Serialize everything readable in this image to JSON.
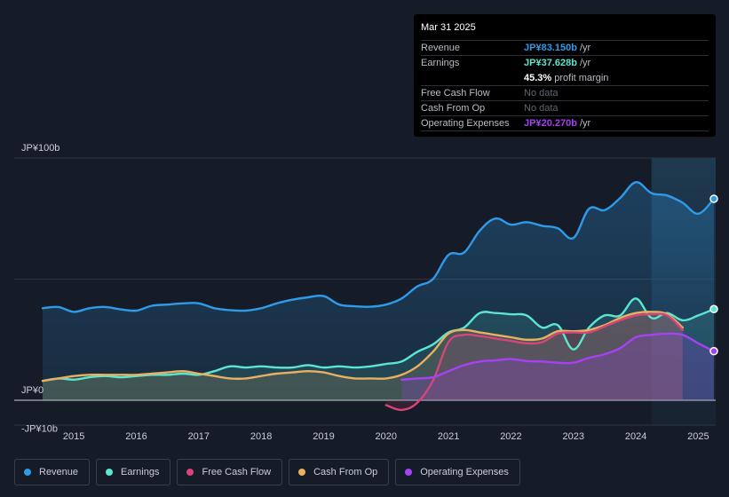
{
  "tooltip": {
    "date": "Mar 31 2025",
    "rows": [
      {
        "label": "Revenue",
        "value": "JP¥83.150b",
        "unit": " /yr",
        "color": "#2e9bea"
      },
      {
        "label": "Earnings",
        "value": "JP¥37.628b",
        "unit": " /yr",
        "color": "#5ce6cf"
      },
      {
        "label": "",
        "value": "45.3%",
        "unit": " profit margin",
        "color": "#ffffff"
      },
      {
        "label": "Free Cash Flow",
        "value": "No data",
        "unit": "",
        "color": "#5f6672"
      },
      {
        "label": "Cash From Op",
        "value": "No data",
        "unit": "",
        "color": "#5f6672"
      },
      {
        "label": "Operating Expenses",
        "value": "JP¥20.270b",
        "unit": " /yr",
        "color": "#a542f4"
      }
    ]
  },
  "legend": [
    {
      "label": "Revenue",
      "color": "#2e9bea"
    },
    {
      "label": "Earnings",
      "color": "#5ce6cf"
    },
    {
      "label": "Free Cash Flow",
      "color": "#d6457a"
    },
    {
      "label": "Cash From Op",
      "color": "#e8b060"
    },
    {
      "label": "Operating Expenses",
      "color": "#a542f4"
    }
  ],
  "chart_data": {
    "type": "area",
    "title": "",
    "xlabel": "",
    "ylabel": "",
    "y_axis_labels": [
      "JP¥100b",
      "JP¥0",
      "-JP¥10b"
    ],
    "x_tick_labels": [
      "2015",
      "2016",
      "2017",
      "2018",
      "2019",
      "2020",
      "2021",
      "2022",
      "2023",
      "2024",
      "2025"
    ],
    "x_ticks": [
      2015,
      2016,
      2017,
      2018,
      2019,
      2020,
      2021,
      2022,
      2023,
      2024,
      2025
    ],
    "xlim": [
      2014.5,
      2025.25
    ],
    "ylim": [
      -10,
      100
    ],
    "gridlines": [
      100,
      50,
      0
    ],
    "forecast_start": 2024.25,
    "series": [
      {
        "name": "Revenue",
        "color": "#2e9bea",
        "points": [
          [
            2014.5,
            38
          ],
          [
            2014.75,
            38.5
          ],
          [
            2015.0,
            36.5
          ],
          [
            2015.25,
            38
          ],
          [
            2015.5,
            38.5
          ],
          [
            2015.75,
            37.5
          ],
          [
            2016.0,
            37
          ],
          [
            2016.25,
            39
          ],
          [
            2016.5,
            39.5
          ],
          [
            2016.75,
            40
          ],
          [
            2017.0,
            40
          ],
          [
            2017.25,
            38
          ],
          [
            2017.5,
            37.2
          ],
          [
            2017.75,
            37
          ],
          [
            2018.0,
            38
          ],
          [
            2018.25,
            40
          ],
          [
            2018.5,
            41.5
          ],
          [
            2018.75,
            42.5
          ],
          [
            2019.0,
            43
          ],
          [
            2019.25,
            39.5
          ],
          [
            2019.5,
            38.8
          ],
          [
            2019.75,
            38.6
          ],
          [
            2020.0,
            39.5
          ],
          [
            2020.25,
            42
          ],
          [
            2020.5,
            47
          ],
          [
            2020.75,
            50
          ],
          [
            2021.0,
            60
          ],
          [
            2021.25,
            61
          ],
          [
            2021.5,
            70
          ],
          [
            2021.75,
            75
          ],
          [
            2022.0,
            72.5
          ],
          [
            2022.25,
            73.5
          ],
          [
            2022.5,
            72
          ],
          [
            2022.75,
            71
          ],
          [
            2023.0,
            67
          ],
          [
            2023.25,
            79
          ],
          [
            2023.5,
            78.5
          ],
          [
            2023.75,
            83.5
          ],
          [
            2024.0,
            90
          ],
          [
            2024.25,
            85.5
          ],
          [
            2024.5,
            84.5
          ],
          [
            2024.75,
            81.5
          ],
          [
            2025.0,
            77
          ],
          [
            2025.25,
            83.15
          ]
        ]
      },
      {
        "name": "Earnings",
        "color": "#5ce6cf",
        "points": [
          [
            2014.5,
            8
          ],
          [
            2014.75,
            9
          ],
          [
            2015.0,
            8.5
          ],
          [
            2015.25,
            9.5
          ],
          [
            2015.5,
            10
          ],
          [
            2015.75,
            9.5
          ],
          [
            2016.0,
            10
          ],
          [
            2016.25,
            10.5
          ],
          [
            2016.5,
            10.5
          ],
          [
            2016.75,
            11
          ],
          [
            2017.0,
            10.5
          ],
          [
            2017.25,
            12
          ],
          [
            2017.5,
            14
          ],
          [
            2017.75,
            13.5
          ],
          [
            2018.0,
            14
          ],
          [
            2018.25,
            13.5
          ],
          [
            2018.5,
            13.5
          ],
          [
            2018.75,
            14.5
          ],
          [
            2019.0,
            13.5
          ],
          [
            2019.25,
            14
          ],
          [
            2019.5,
            13.5
          ],
          [
            2019.75,
            14
          ],
          [
            2020.0,
            15
          ],
          [
            2020.25,
            16
          ],
          [
            2020.5,
            20
          ],
          [
            2020.75,
            23
          ],
          [
            2021.0,
            28
          ],
          [
            2021.25,
            30
          ],
          [
            2021.5,
            36
          ],
          [
            2021.75,
            36
          ],
          [
            2022.0,
            35.5
          ],
          [
            2022.25,
            35
          ],
          [
            2022.5,
            30
          ],
          [
            2022.75,
            31
          ],
          [
            2023.0,
            21
          ],
          [
            2023.25,
            30
          ],
          [
            2023.5,
            35
          ],
          [
            2023.75,
            35
          ],
          [
            2024.0,
            42
          ],
          [
            2024.25,
            34
          ],
          [
            2024.5,
            36
          ],
          [
            2024.75,
            33
          ],
          [
            2025.0,
            35
          ],
          [
            2025.25,
            37.63
          ]
        ]
      },
      {
        "name": "Free Cash Flow",
        "color": "#d6457a",
        "points": [
          [
            2020.0,
            -2
          ],
          [
            2020.25,
            -4
          ],
          [
            2020.5,
            -1
          ],
          [
            2020.75,
            8
          ],
          [
            2021.0,
            24
          ],
          [
            2021.25,
            27
          ],
          [
            2021.5,
            26.5
          ],
          [
            2021.75,
            25.5
          ],
          [
            2022.0,
            24.5
          ],
          [
            2022.25,
            23.5
          ],
          [
            2022.5,
            24
          ],
          [
            2022.75,
            27.5
          ],
          [
            2023.0,
            28
          ],
          [
            2023.25,
            28
          ],
          [
            2023.5,
            30.5
          ],
          [
            2023.75,
            33
          ],
          [
            2024.0,
            35
          ],
          [
            2024.25,
            35.5
          ],
          [
            2024.5,
            35
          ],
          [
            2024.75,
            29
          ]
        ]
      },
      {
        "name": "Cash From Op",
        "color": "#e8b060",
        "points": [
          [
            2014.5,
            8
          ],
          [
            2014.75,
            9
          ],
          [
            2015.0,
            10
          ],
          [
            2015.25,
            10.5
          ],
          [
            2015.5,
            10.5
          ],
          [
            2015.75,
            10.5
          ],
          [
            2016.0,
            10.5
          ],
          [
            2016.25,
            11
          ],
          [
            2016.5,
            11.5
          ],
          [
            2016.75,
            12
          ],
          [
            2017.0,
            11
          ],
          [
            2017.25,
            10
          ],
          [
            2017.5,
            9
          ],
          [
            2017.75,
            9
          ],
          [
            2018.0,
            10
          ],
          [
            2018.25,
            11
          ],
          [
            2018.5,
            11.5
          ],
          [
            2018.75,
            12
          ],
          [
            2019.0,
            11.5
          ],
          [
            2019.25,
            10
          ],
          [
            2019.5,
            9
          ],
          [
            2019.75,
            9
          ],
          [
            2020.0,
            9
          ],
          [
            2020.25,
            10.5
          ],
          [
            2020.5,
            14
          ],
          [
            2020.75,
            20
          ],
          [
            2021.0,
            27.5
          ],
          [
            2021.25,
            29
          ],
          [
            2021.5,
            28
          ],
          [
            2021.75,
            27
          ],
          [
            2022.0,
            26
          ],
          [
            2022.25,
            25
          ],
          [
            2022.5,
            25.5
          ],
          [
            2022.75,
            28.5
          ],
          [
            2023.0,
            28.5
          ],
          [
            2023.25,
            29
          ],
          [
            2023.5,
            31
          ],
          [
            2023.75,
            34
          ],
          [
            2024.0,
            36
          ],
          [
            2024.25,
            36.5
          ],
          [
            2024.5,
            35.5
          ],
          [
            2024.75,
            30
          ]
        ]
      },
      {
        "name": "Operating Expenses",
        "color": "#a542f4",
        "points": [
          [
            2020.25,
            8.5
          ],
          [
            2020.5,
            9
          ],
          [
            2020.75,
            9.5
          ],
          [
            2021.0,
            12
          ],
          [
            2021.25,
            14.5
          ],
          [
            2021.5,
            16
          ],
          [
            2021.75,
            16.5
          ],
          [
            2022.0,
            17
          ],
          [
            2022.25,
            16.2
          ],
          [
            2022.5,
            16
          ],
          [
            2022.75,
            15.5
          ],
          [
            2023.0,
            15.5
          ],
          [
            2023.25,
            17.5
          ],
          [
            2023.5,
            19
          ],
          [
            2023.75,
            21.5
          ],
          [
            2024.0,
            26
          ],
          [
            2024.25,
            27
          ],
          [
            2024.5,
            27.5
          ],
          [
            2024.75,
            27
          ],
          [
            2025.0,
            23.5
          ],
          [
            2025.25,
            20.27
          ]
        ]
      }
    ]
  }
}
